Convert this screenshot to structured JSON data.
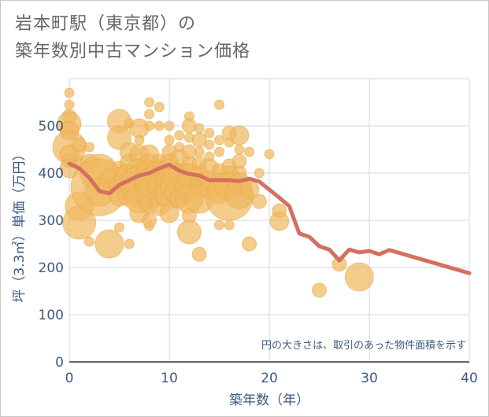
{
  "title_lines": [
    "岩本町駅（東京都）の",
    "築年数別中古マンション価格"
  ],
  "colors": {
    "bubble": "#f0b860",
    "bubble_stroke": "#e8a848",
    "line": "#d47060",
    "grid": "#cfd8e2",
    "axis_text": "#3d5a80",
    "title_text": "#666666"
  },
  "chart_data": {
    "type": "scatter",
    "title": "岩本町駅（東京都）の築年数別中古マンション価格",
    "xlabel": "築年数（年）",
    "ylabel": "坪（3.3㎡）単価（万円）",
    "xlim": [
      0,
      40
    ],
    "ylim": [
      0,
      600
    ],
    "xticks": [
      0,
      10,
      20,
      30,
      40
    ],
    "yticks": [
      0,
      100,
      200,
      300,
      400,
      500
    ],
    "grid": true,
    "note": "円の大きさは、取引のあった物件面積を示す",
    "points": [
      {
        "x": 0,
        "y": 570,
        "s": 1
      },
      {
        "x": 0,
        "y": 545,
        "s": 1
      },
      {
        "x": 0,
        "y": 520,
        "s": 1.5
      },
      {
        "x": 0,
        "y": 505,
        "s": 2.5
      },
      {
        "x": 0,
        "y": 490,
        "s": 2
      },
      {
        "x": 0,
        "y": 455,
        "s": 3.5
      },
      {
        "x": 0,
        "y": 440,
        "s": 2
      },
      {
        "x": 0,
        "y": 425,
        "s": 1.5
      },
      {
        "x": 0,
        "y": 410,
        "s": 2
      },
      {
        "x": 1,
        "y": 460,
        "s": 1.5
      },
      {
        "x": 1,
        "y": 425,
        "s": 1
      },
      {
        "x": 1,
        "y": 330,
        "s": 3
      },
      {
        "x": 1,
        "y": 295,
        "s": 3.5
      },
      {
        "x": 2,
        "y": 455,
        "s": 1
      },
      {
        "x": 2,
        "y": 420,
        "s": 2
      },
      {
        "x": 2,
        "y": 255,
        "s": 1
      },
      {
        "x": 3,
        "y": 400,
        "s": 4
      },
      {
        "x": 3,
        "y": 370,
        "s": 6
      },
      {
        "x": 3,
        "y": 360,
        "s": 3
      },
      {
        "x": 4,
        "y": 390,
        "s": 2
      },
      {
        "x": 4,
        "y": 250,
        "s": 3
      },
      {
        "x": 5,
        "y": 510,
        "s": 2.5
      },
      {
        "x": 5,
        "y": 475,
        "s": 2.5
      },
      {
        "x": 5,
        "y": 410,
        "s": 1.5
      },
      {
        "x": 5,
        "y": 375,
        "s": 2
      },
      {
        "x": 5,
        "y": 350,
        "s": 2
      },
      {
        "x": 5,
        "y": 285,
        "s": 1
      },
      {
        "x": 6,
        "y": 505,
        "s": 1
      },
      {
        "x": 6,
        "y": 445,
        "s": 2
      },
      {
        "x": 6,
        "y": 420,
        "s": 2
      },
      {
        "x": 6,
        "y": 390,
        "s": 3
      },
      {
        "x": 6,
        "y": 355,
        "s": 2.5
      },
      {
        "x": 6,
        "y": 250,
        "s": 1
      },
      {
        "x": 7,
        "y": 495,
        "s": 2
      },
      {
        "x": 7,
        "y": 470,
        "s": 1
      },
      {
        "x": 7,
        "y": 440,
        "s": 2
      },
      {
        "x": 7,
        "y": 400,
        "s": 3
      },
      {
        "x": 7,
        "y": 375,
        "s": 4
      },
      {
        "x": 7,
        "y": 345,
        "s": 3
      },
      {
        "x": 7,
        "y": 315,
        "s": 2
      },
      {
        "x": 8,
        "y": 550,
        "s": 1
      },
      {
        "x": 8,
        "y": 525,
        "s": 1
      },
      {
        "x": 8,
        "y": 500,
        "s": 1
      },
      {
        "x": 8,
        "y": 440,
        "s": 2
      },
      {
        "x": 8,
        "y": 415,
        "s": 2.5
      },
      {
        "x": 8,
        "y": 395,
        "s": 3
      },
      {
        "x": 8,
        "y": 380,
        "s": 3
      },
      {
        "x": 8,
        "y": 360,
        "s": 3
      },
      {
        "x": 8,
        "y": 335,
        "s": 2
      },
      {
        "x": 8,
        "y": 300,
        "s": 1.5
      },
      {
        "x": 8,
        "y": 288,
        "s": 1
      },
      {
        "x": 9,
        "y": 540,
        "s": 1
      },
      {
        "x": 9,
        "y": 500,
        "s": 1
      },
      {
        "x": 9,
        "y": 425,
        "s": 1.5
      },
      {
        "x": 9,
        "y": 395,
        "s": 3
      },
      {
        "x": 9,
        "y": 375,
        "s": 2.5
      },
      {
        "x": 9,
        "y": 350,
        "s": 2
      },
      {
        "x": 9,
        "y": 330,
        "s": 2
      },
      {
        "x": 10,
        "y": 500,
        "s": 1
      },
      {
        "x": 10,
        "y": 470,
        "s": 1
      },
      {
        "x": 10,
        "y": 445,
        "s": 1.5
      },
      {
        "x": 10,
        "y": 420,
        "s": 2
      },
      {
        "x": 10,
        "y": 400,
        "s": 3
      },
      {
        "x": 10,
        "y": 380,
        "s": 3
      },
      {
        "x": 10,
        "y": 355,
        "s": 3
      },
      {
        "x": 10,
        "y": 315,
        "s": 2
      },
      {
        "x": 11,
        "y": 480,
        "s": 1
      },
      {
        "x": 11,
        "y": 455,
        "s": 1
      },
      {
        "x": 11,
        "y": 430,
        "s": 2
      },
      {
        "x": 11,
        "y": 400,
        "s": 2
      },
      {
        "x": 11,
        "y": 375,
        "s": 4
      },
      {
        "x": 11,
        "y": 360,
        "s": 3
      },
      {
        "x": 11,
        "y": 345,
        "s": 2
      },
      {
        "x": 12,
        "y": 520,
        "s": 1
      },
      {
        "x": 12,
        "y": 500,
        "s": 1.5
      },
      {
        "x": 12,
        "y": 475,
        "s": 1
      },
      {
        "x": 12,
        "y": 445,
        "s": 1.5
      },
      {
        "x": 12,
        "y": 420,
        "s": 1.5
      },
      {
        "x": 12,
        "y": 395,
        "s": 2.5
      },
      {
        "x": 12,
        "y": 370,
        "s": 3
      },
      {
        "x": 12,
        "y": 345,
        "s": 3
      },
      {
        "x": 12,
        "y": 310,
        "s": 1.5
      },
      {
        "x": 12,
        "y": 275,
        "s": 2.5
      },
      {
        "x": 13,
        "y": 495,
        "s": 1
      },
      {
        "x": 13,
        "y": 470,
        "s": 1.5
      },
      {
        "x": 13,
        "y": 445,
        "s": 1
      },
      {
        "x": 13,
        "y": 420,
        "s": 1.5
      },
      {
        "x": 13,
        "y": 395,
        "s": 2
      },
      {
        "x": 13,
        "y": 370,
        "s": 2
      },
      {
        "x": 13,
        "y": 345,
        "s": 3
      },
      {
        "x": 13,
        "y": 228,
        "s": 1.5
      },
      {
        "x": 14,
        "y": 485,
        "s": 1
      },
      {
        "x": 14,
        "y": 460,
        "s": 1
      },
      {
        "x": 14,
        "y": 435,
        "s": 1
      },
      {
        "x": 14,
        "y": 410,
        "s": 2
      },
      {
        "x": 14,
        "y": 385,
        "s": 2
      },
      {
        "x": 14,
        "y": 365,
        "s": 2
      },
      {
        "x": 15,
        "y": 545,
        "s": 1
      },
      {
        "x": 15,
        "y": 470,
        "s": 1
      },
      {
        "x": 15,
        "y": 445,
        "s": 1
      },
      {
        "x": 15,
        "y": 405,
        "s": 1.5
      },
      {
        "x": 15,
        "y": 380,
        "s": 2
      },
      {
        "x": 15,
        "y": 360,
        "s": 2.5
      },
      {
        "x": 15,
        "y": 290,
        "s": 1
      },
      {
        "x": 16,
        "y": 485,
        "s": 1.5
      },
      {
        "x": 16,
        "y": 465,
        "s": 1
      },
      {
        "x": 16,
        "y": 415,
        "s": 1.5
      },
      {
        "x": 16,
        "y": 395,
        "s": 2
      },
      {
        "x": 16,
        "y": 370,
        "s": 3
      },
      {
        "x": 16,
        "y": 350,
        "s": 5
      },
      {
        "x": 16,
        "y": 290,
        "s": 1
      },
      {
        "x": 17,
        "y": 480,
        "s": 2
      },
      {
        "x": 17,
        "y": 450,
        "s": 1
      },
      {
        "x": 17,
        "y": 425,
        "s": 1.5
      },
      {
        "x": 17,
        "y": 400,
        "s": 1.5
      },
      {
        "x": 17,
        "y": 375,
        "s": 2.5
      },
      {
        "x": 17,
        "y": 355,
        "s": 3
      },
      {
        "x": 18,
        "y": 445,
        "s": 1
      },
      {
        "x": 18,
        "y": 365,
        "s": 2
      },
      {
        "x": 18,
        "y": 250,
        "s": 1.5
      },
      {
        "x": 19,
        "y": 400,
        "s": 1
      },
      {
        "x": 19,
        "y": 340,
        "s": 1.5
      },
      {
        "x": 20,
        "y": 440,
        "s": 1
      },
      {
        "x": 21,
        "y": 320,
        "s": 1.5
      },
      {
        "x": 21,
        "y": 298,
        "s": 2
      },
      {
        "x": 25,
        "y": 152,
        "s": 1.5
      },
      {
        "x": 27,
        "y": 207,
        "s": 1.5
      },
      {
        "x": 29,
        "y": 180,
        "s": 3
      }
    ],
    "series": [
      {
        "x": [
          0,
          1,
          2,
          3,
          4,
          5,
          6,
          7,
          8,
          9,
          10,
          11,
          12,
          13,
          14,
          15,
          16,
          17,
          18,
          19,
          20,
          21,
          22,
          23,
          24,
          25,
          26,
          27,
          28,
          29,
          30,
          31,
          32,
          40
        ],
        "y": [
          420,
          410,
          390,
          362,
          357,
          375,
          385,
          395,
          400,
          410,
          418,
          405,
          398,
          395,
          385,
          385,
          385,
          383,
          388,
          382,
          365,
          348,
          330,
          272,
          265,
          245,
          238,
          215,
          238,
          232,
          235,
          228,
          237,
          188
        ]
      }
    ]
  }
}
